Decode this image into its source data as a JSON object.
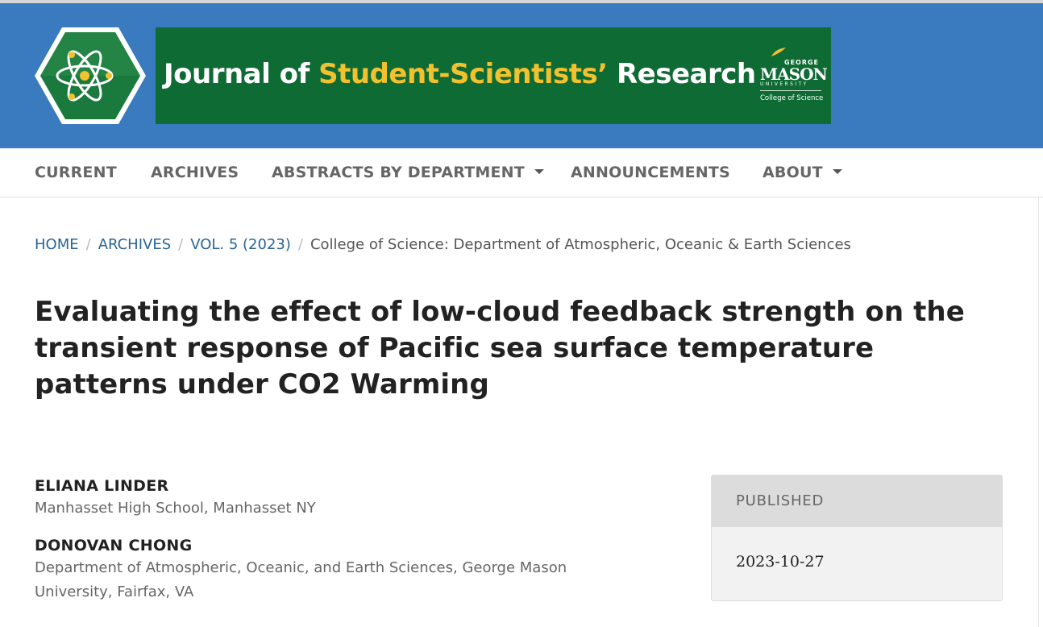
{
  "header": {
    "title_part1": "Journal of ",
    "title_highlight": "Student-Scientists’",
    "title_part2": " Research",
    "logo_icon": "atom-hexagon-icon",
    "university_george": "GEORGE",
    "university_mason": "MASON",
    "university_univ": "UNIVERSITY",
    "college": "College of Science",
    "colors": {
      "band": "#3a7abf",
      "banner": "#0e6b34",
      "highlight": "#f2c12e"
    }
  },
  "nav": {
    "items": [
      {
        "label": "CURRENT",
        "dropdown": false
      },
      {
        "label": "ARCHIVES",
        "dropdown": false
      },
      {
        "label": "ABSTRACTS BY DEPARTMENT",
        "dropdown": true
      },
      {
        "label": "ANNOUNCEMENTS",
        "dropdown": false
      },
      {
        "label": "ABOUT",
        "dropdown": true
      }
    ]
  },
  "breadcrumb": {
    "items": [
      "HOME",
      "ARCHIVES",
      "VOL. 5 (2023)"
    ],
    "current": "College of Science: Department of Atmospheric, Oceanic & Earth Sciences"
  },
  "article": {
    "title": "Evaluating the effect of low-cloud feedback strength on the transient response of Pacific sea surface temperature patterns under CO2 Warming",
    "authors": [
      {
        "name": "ELIANA LINDER",
        "affiliation": "Manhasset High School, Manhasset NY"
      },
      {
        "name": "DONOVAN CHONG",
        "affiliation": "Department of Atmospheric, Oceanic, and Earth Sciences, George Mason University, Fairfax, VA"
      }
    ]
  },
  "published": {
    "label": "PUBLISHED",
    "date": "2023-10-27"
  }
}
